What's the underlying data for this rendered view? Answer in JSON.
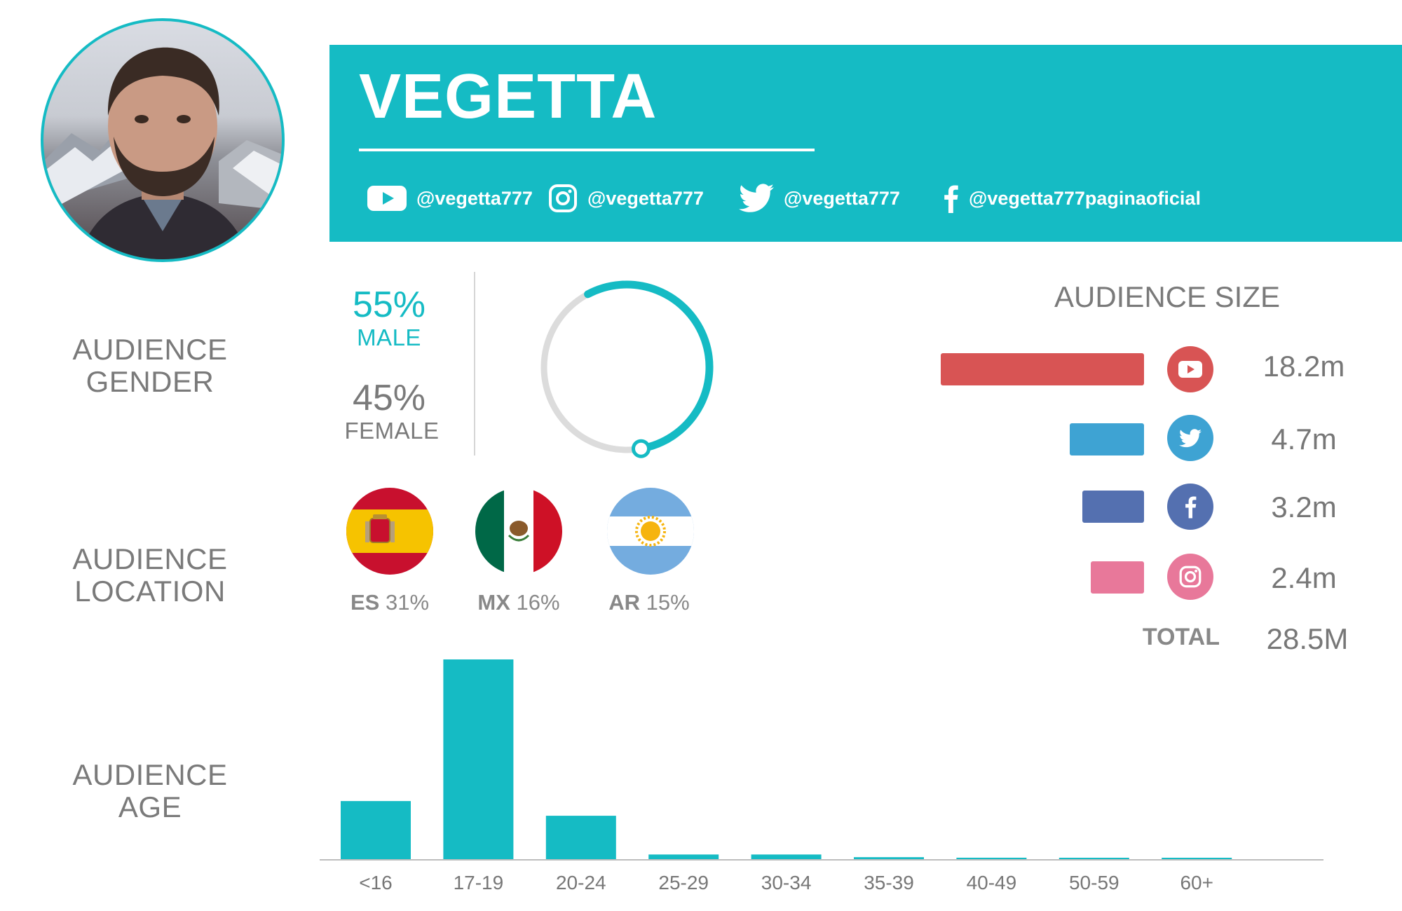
{
  "profile": {
    "name": "VEGETTA"
  },
  "social": [
    {
      "network": "youtube",
      "icon": "youtube-icon",
      "handle": "@vegetta777"
    },
    {
      "network": "instagram",
      "icon": "instagram-icon",
      "handle": "@vegetta777"
    },
    {
      "network": "twitter",
      "icon": "twitter-icon",
      "handle": "@vegetta777"
    },
    {
      "network": "facebook",
      "icon": "facebook-icon",
      "handle": "@vegetta777paginaoficial"
    }
  ],
  "sections": {
    "gender": [
      "AUDIENCE",
      "GENDER"
    ],
    "location": [
      "AUDIENCE",
      "LOCATION"
    ],
    "age": [
      "AUDIENCE",
      "AGE"
    ]
  },
  "gender": {
    "male": {
      "pct": "55%",
      "label": "MALE",
      "fraction": 0.55
    },
    "female": {
      "pct": "45%",
      "label": "FEMALE"
    }
  },
  "location": [
    {
      "code": "ES",
      "pct": "31%",
      "flag": "spain-flag"
    },
    {
      "code": "MX",
      "pct": "16%",
      "flag": "mexico-flag"
    },
    {
      "code": "AR",
      "pct": "15%",
      "flag": "argentina-flag"
    }
  ],
  "audience_size": {
    "title": "AUDIENCE SIZE",
    "rows": [
      {
        "network": "youtube",
        "icon": "youtube-icon",
        "value_text": "18.2m",
        "value": 18.2,
        "color": "#d85454"
      },
      {
        "network": "twitter",
        "icon": "twitter-icon",
        "value_text": "4.7m",
        "value": 4.7,
        "color": "#3ea3d3"
      },
      {
        "network": "facebook",
        "icon": "facebook-icon",
        "value_text": "3.2m",
        "value": 3.2,
        "color": "#5470b0"
      },
      {
        "network": "instagram",
        "icon": "instagram-icon",
        "value_text": "2.4m",
        "value": 2.4,
        "color": "#e8789a"
      }
    ],
    "total_label": "TOTAL",
    "total": "28.5M"
  },
  "colors": {
    "accent": "#15bbc4",
    "ring_bg": "#dcdcdc"
  },
  "chart_data": {
    "type": "bar",
    "categories": [
      "<16",
      "17-19",
      "20-24",
      "25-29",
      "30-34",
      "35-39",
      "40-49",
      "50-59",
      "60+"
    ],
    "values": [
      22,
      75,
      16.5,
      2,
      2,
      1,
      0.8,
      0.5,
      0.4
    ],
    "title": "",
    "xlabel": "",
    "ylabel": "",
    "ylim": [
      0,
      80
    ],
    "grid": false,
    "color": "#15bbc4"
  }
}
